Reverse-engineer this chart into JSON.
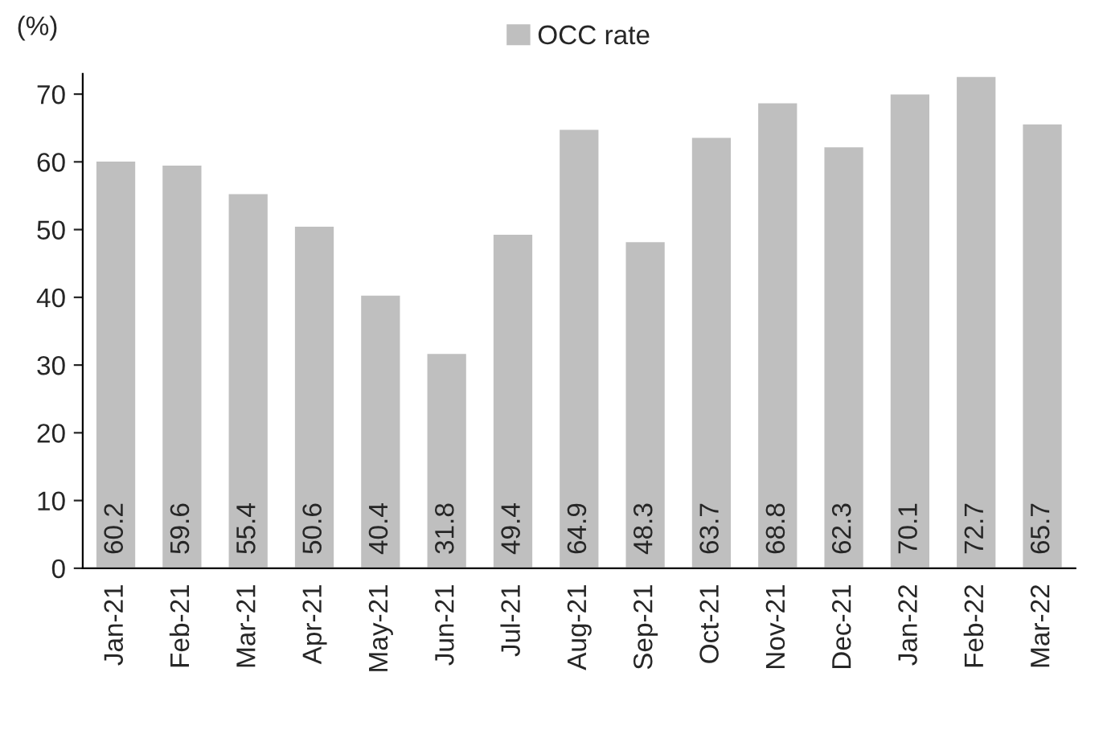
{
  "chart_data": {
    "type": "bar",
    "ylabel": "(%)",
    "categories": [
      "Jan-21",
      "Feb-21",
      "Mar-21",
      "Apr-21",
      "May-21",
      "Jun-21",
      "Jul-21",
      "Aug-21",
      "Sep-21",
      "Oct-21",
      "Nov-21",
      "Dec-21",
      "Jan-22",
      "Feb-22",
      "Mar-22"
    ],
    "series": [
      {
        "name": "OCC rate",
        "color": "#bfbfbf",
        "values": [
          60.2,
          59.6,
          55.4,
          50.6,
          40.4,
          31.8,
          49.4,
          64.9,
          48.3,
          63.7,
          68.8,
          62.3,
          70.1,
          72.7,
          65.7
        ]
      }
    ],
    "ylim": [
      0,
      73
    ],
    "yticks": [
      0,
      10,
      20,
      30,
      40,
      50,
      60,
      70
    ],
    "data_labels": true,
    "legend": "top",
    "grid": false
  }
}
